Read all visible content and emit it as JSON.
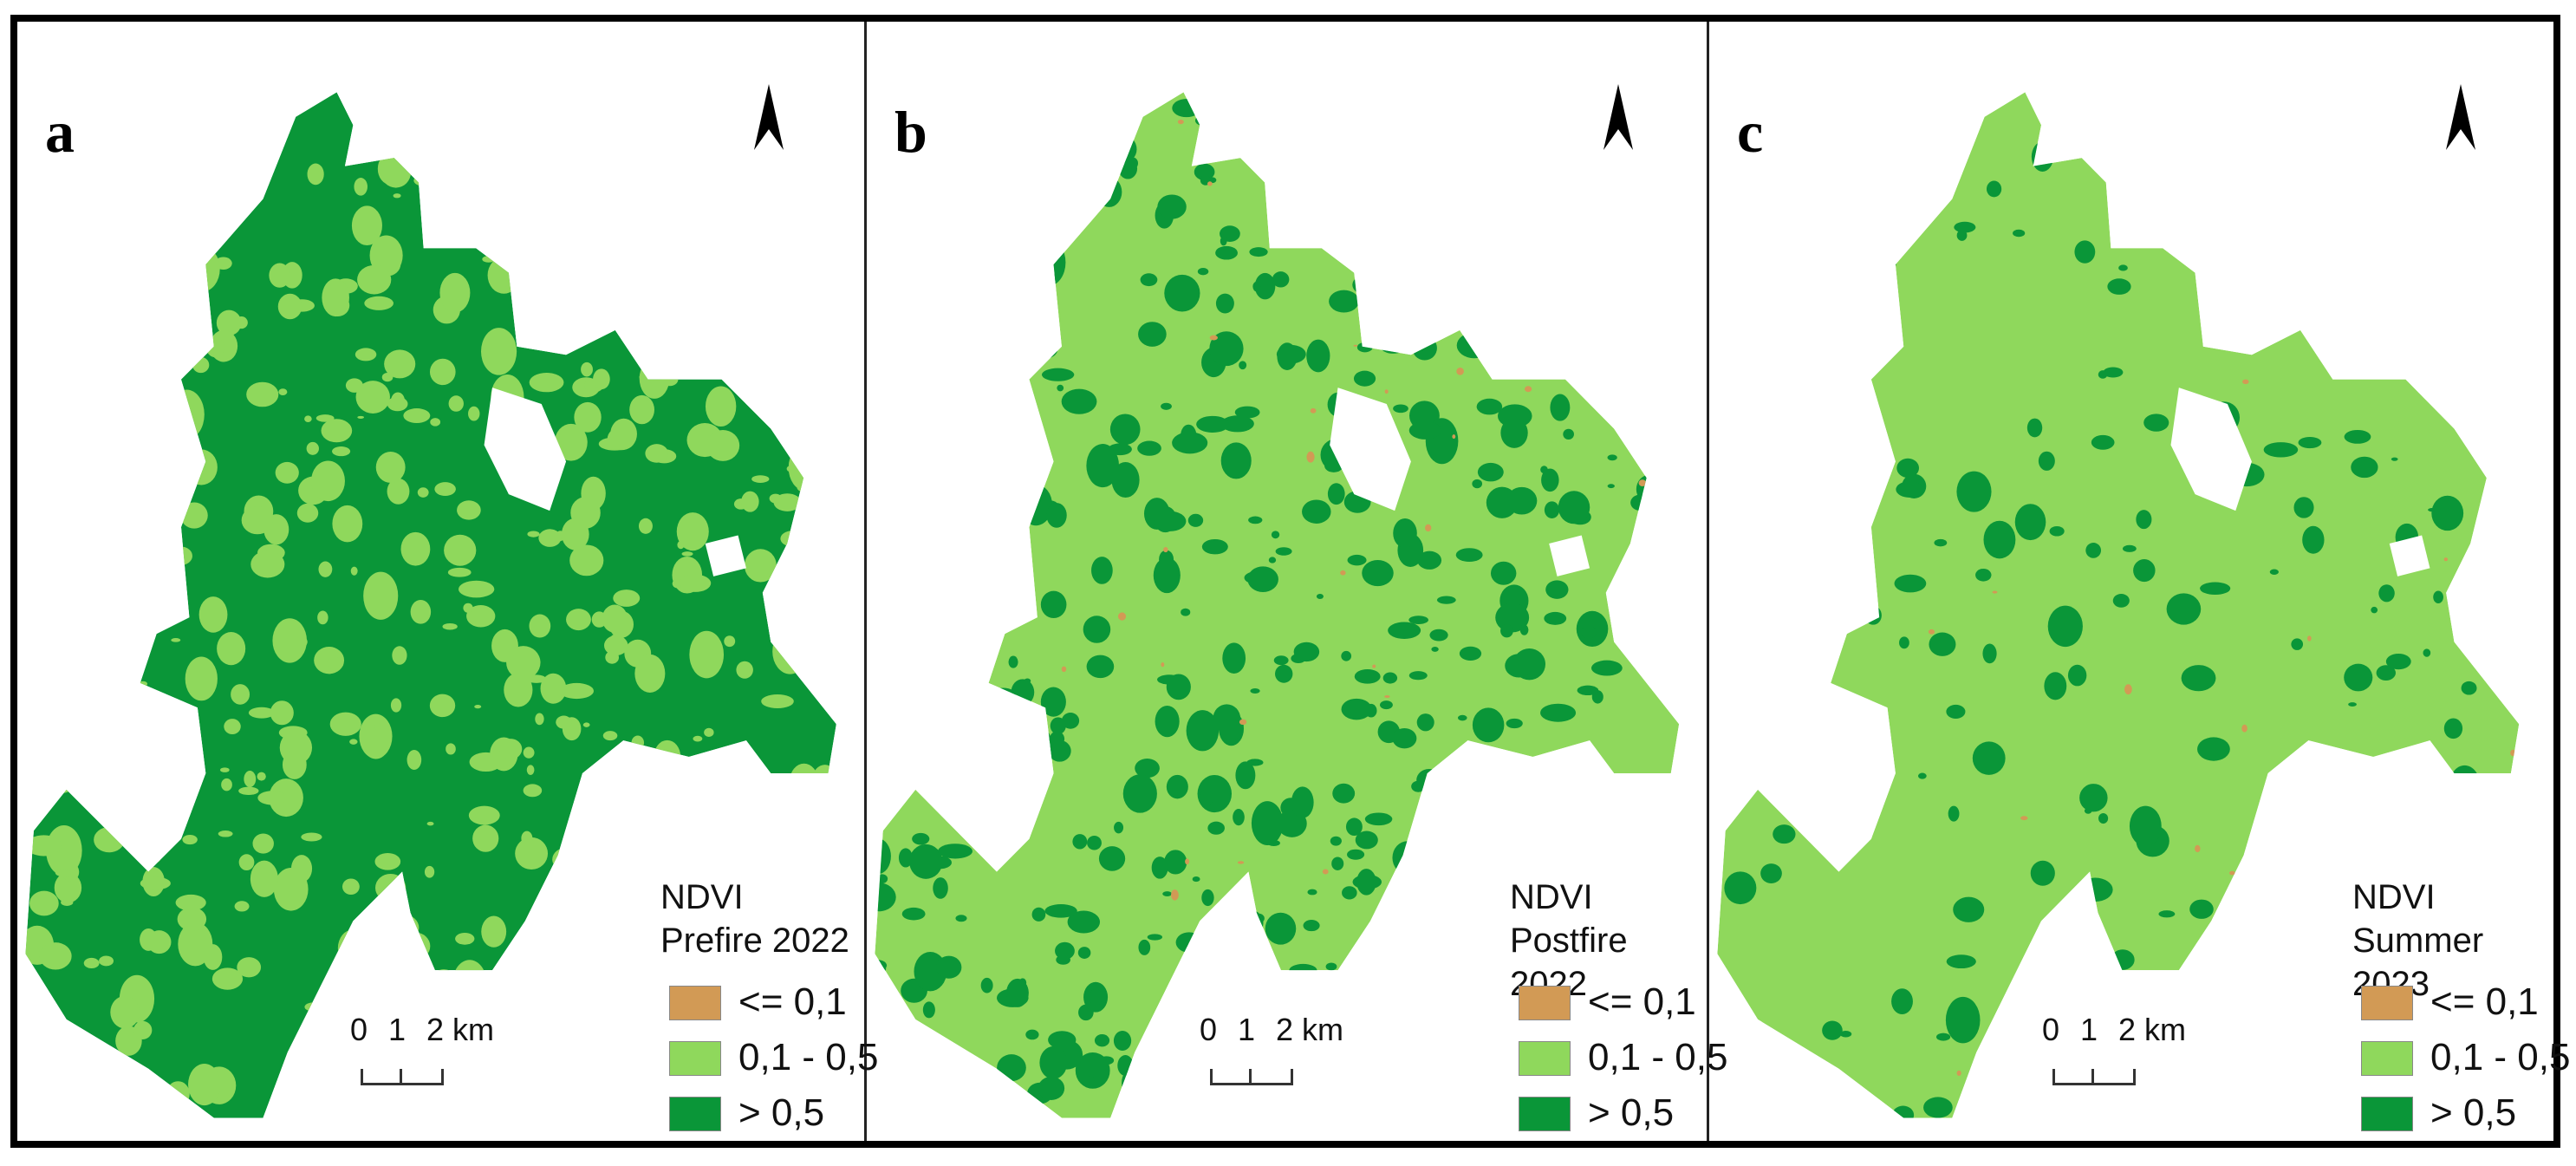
{
  "panels": [
    {
      "label": "a",
      "title_line1": "NDVI",
      "title_line2": "Prefire 2022",
      "dark_patches": 500,
      "light_patches": 0,
      "brown_patches": 0,
      "base": "dark"
    },
    {
      "label": "b",
      "title_line1": "NDVI",
      "title_line2": "Postfire 2022",
      "base": "light"
    },
    {
      "label": "c",
      "title_line1": "NDVI",
      "title_line2": "Summer 2023",
      "base": "light"
    }
  ],
  "legend": [
    {
      "label": "<= 0,1",
      "color": "#d29a55"
    },
    {
      "label": "0,1 - 0,5",
      "color": "#8fd85c"
    },
    {
      "label": "> 0,5",
      "color": "#0a9638"
    }
  ],
  "scale": {
    "t0": "0",
    "t1": "1",
    "t2": "2 km"
  },
  "icons": {
    "north_arrow": "north-arrow-icon"
  }
}
